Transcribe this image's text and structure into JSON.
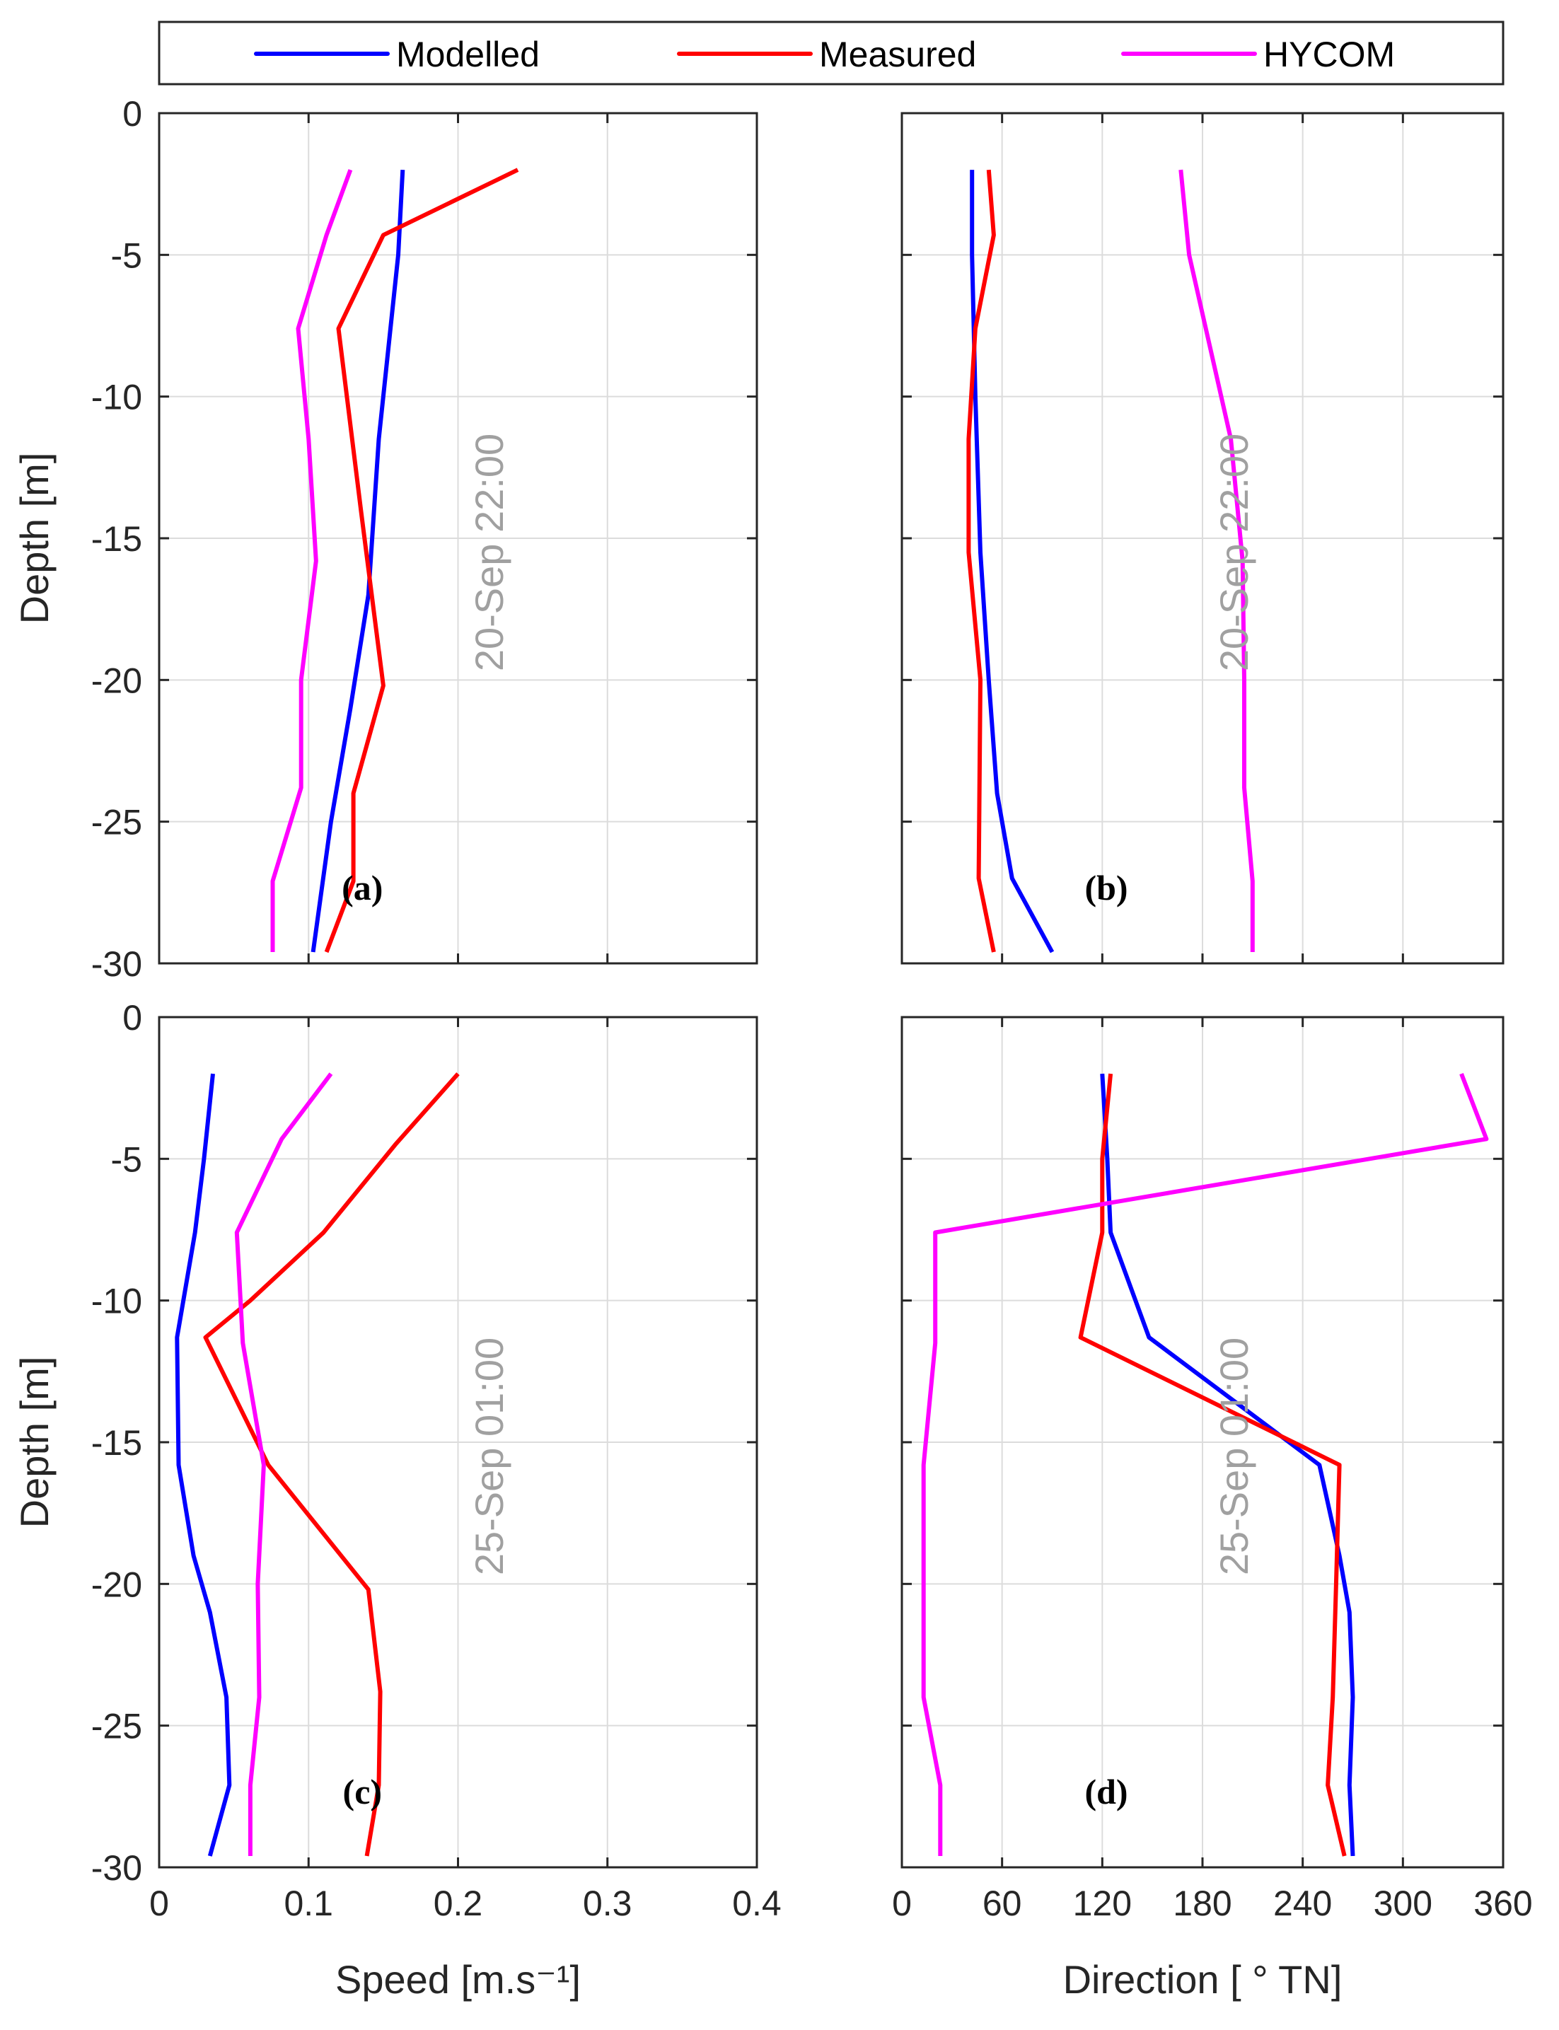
{
  "legend": [
    {
      "name": "Modelled",
      "color": "#0000ff"
    },
    {
      "name": "Measured",
      "color": "#ff0000"
    },
    {
      "name": "HYCOM",
      "color": "#ff00ff"
    }
  ],
  "chart_data": [
    {
      "type": "line",
      "panel": "(a)",
      "timestamp": "20-Sep 22:00",
      "xlabel": "",
      "ylabel": "Depth [m]",
      "xlim": [
        0,
        0.4
      ],
      "ylim": [
        -30,
        0
      ],
      "xticks": [],
      "yticks": [
        "0",
        "-5",
        "-10",
        "-15",
        "-20",
        "-25",
        "-30"
      ],
      "grid": true,
      "series": [
        {
          "name": "Modelled",
          "x": [
            0.163,
            0.16,
            0.147,
            0.14,
            0.128,
            0.115,
            0.103
          ],
          "y": [
            -2,
            -5,
            -11.5,
            -17,
            -21,
            -25,
            -29.6
          ]
        },
        {
          "name": "Measured",
          "x": [
            0.24,
            0.15,
            0.12,
            0.135,
            0.15,
            0.13,
            0.13,
            0.112
          ],
          "y": [
            -2,
            -4.3,
            -7.6,
            -14,
            -20.2,
            -24,
            -27.1,
            -29.6
          ]
        },
        {
          "name": "HYCOM",
          "x": [
            0.128,
            0.112,
            0.093,
            0.1,
            0.105,
            0.095,
            0.095,
            0.076,
            0.076
          ],
          "y": [
            -2,
            -4.3,
            -7.6,
            -11.5,
            -15.8,
            -20,
            -23.8,
            -27.1,
            -29.6
          ]
        }
      ]
    },
    {
      "type": "line",
      "panel": "(b)",
      "timestamp": "20-Sep 22:00",
      "xlabel": "",
      "ylabel": "",
      "xlim": [
        0,
        360
      ],
      "ylim": [
        -30,
        0
      ],
      "xticks": [],
      "yticks": [],
      "grid": true,
      "series": [
        {
          "name": "Modelled",
          "x": [
            42,
            42,
            44,
            47,
            52,
            57,
            66,
            90
          ],
          "y": [
            -2,
            -5,
            -10,
            -15.5,
            -20,
            -24,
            -27,
            -29.6
          ]
        },
        {
          "name": "Measured",
          "x": [
            52,
            55,
            44,
            40,
            40,
            47,
            46,
            55
          ],
          "y": [
            -2,
            -4.3,
            -7.6,
            -11.5,
            -15.5,
            -20,
            -27,
            -29.6
          ]
        },
        {
          "name": "HYCOM",
          "x": [
            167,
            172,
            182,
            197,
            204,
            205,
            205,
            210,
            210
          ],
          "y": [
            -2,
            -5,
            -7.6,
            -11.5,
            -15.8,
            -20,
            -23.8,
            -27.1,
            -29.6
          ]
        }
      ]
    },
    {
      "type": "line",
      "panel": "(c)",
      "timestamp": "25-Sep 01:00",
      "xlabel": "Speed [m.s⁻¹]",
      "ylabel": "Depth [m]",
      "xlim": [
        0,
        0.4
      ],
      "ylim": [
        -30,
        0
      ],
      "xticks": [
        "0",
        "0.1",
        "0.2",
        "0.3",
        "0.4"
      ],
      "yticks": [
        "0",
        "-5",
        "-10",
        "-15",
        "-20",
        "-25",
        "-30"
      ],
      "grid": true,
      "series": [
        {
          "name": "Modelled",
          "x": [
            0.036,
            0.03,
            0.024,
            0.012,
            0.013,
            0.023,
            0.034,
            0.045,
            0.047,
            0.034
          ],
          "y": [
            -2,
            -5,
            -7.6,
            -11.3,
            -15.8,
            -19,
            -21,
            -24,
            -27.1,
            -29.6
          ]
        },
        {
          "name": "Measured",
          "x": [
            0.2,
            0.158,
            0.11,
            0.061,
            0.031,
            0.073,
            0.14,
            0.148,
            0.147,
            0.139
          ],
          "y": [
            -2,
            -4.5,
            -7.6,
            -10,
            -11.3,
            -15.8,
            -20.2,
            -23.8,
            -27.1,
            -29.6
          ]
        },
        {
          "name": "HYCOM",
          "x": [
            0.115,
            0.082,
            0.052,
            0.056,
            0.07,
            0.066,
            0.067,
            0.061,
            0.061
          ],
          "y": [
            -2,
            -4.3,
            -7.6,
            -11.5,
            -15.8,
            -20,
            -24,
            -27.1,
            -29.6
          ]
        }
      ]
    },
    {
      "type": "line",
      "panel": "(d)",
      "timestamp": "25-Sep 01:00",
      "xlabel": "Direction [ ° TN]",
      "ylabel": "",
      "xlim": [
        0,
        360
      ],
      "ylim": [
        -30,
        0
      ],
      "xticks": [
        "0",
        "60",
        "120",
        "180",
        "240",
        "300",
        "360"
      ],
      "yticks": [],
      "grid": true,
      "series": [
        {
          "name": "Modelled",
          "x": [
            120,
            123,
            125,
            148,
            250,
            262,
            268,
            270,
            268,
            270
          ],
          "y": [
            -2,
            -5,
            -7.6,
            -11.3,
            -15.8,
            -19,
            -21,
            -24,
            -27.1,
            -29.6
          ]
        },
        {
          "name": "Measured",
          "x": [
            125,
            120,
            120,
            107,
            262,
            260,
            258,
            255,
            265
          ],
          "y": [
            -2,
            -5,
            -7.6,
            -11.3,
            -15.8,
            -20,
            -24,
            -27.1,
            -29.6
          ]
        },
        {
          "name": "HYCOM",
          "x": [
            335,
            350,
            20,
            20,
            13,
            13,
            13,
            23,
            23
          ],
          "y": [
            -2,
            -4.3,
            -7.6,
            -11.5,
            -15.8,
            -20,
            -24,
            -27.1,
            -29.6
          ]
        }
      ]
    }
  ]
}
